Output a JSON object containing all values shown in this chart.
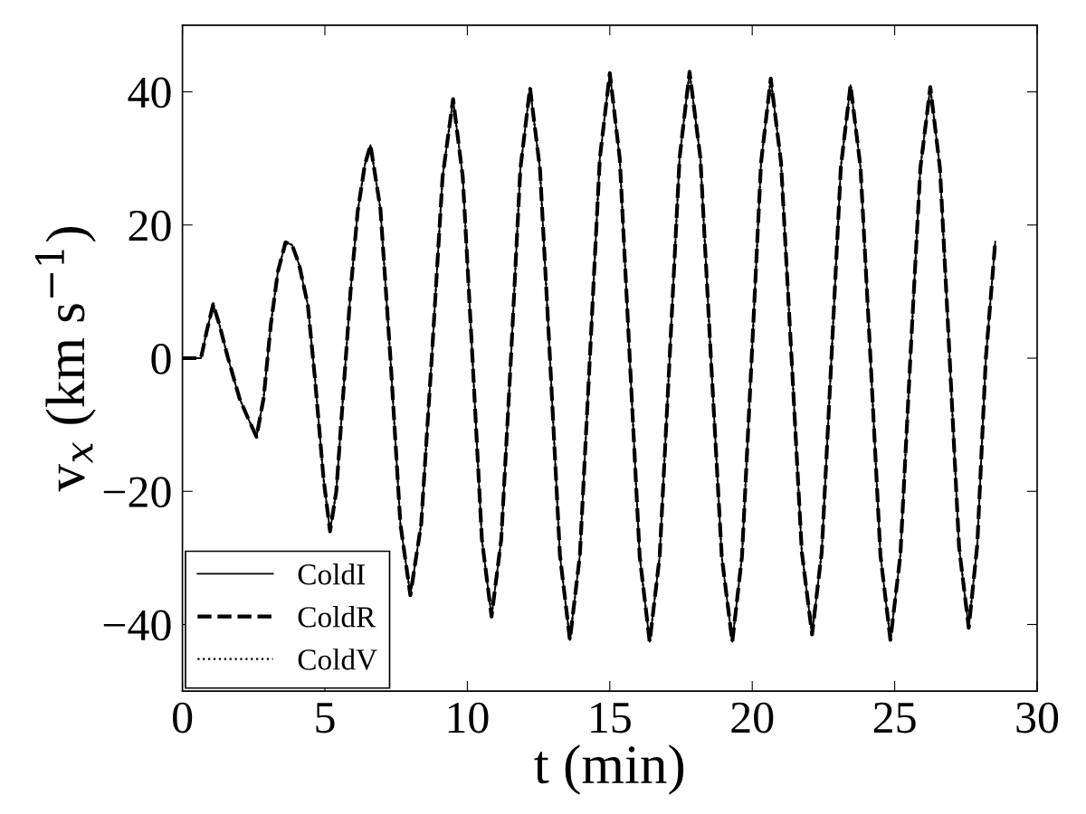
{
  "chart_data": {
    "type": "line",
    "xlabel": "t (min)",
    "ylabel": "v$_{x}$ (km s$^{−1}$)",
    "xlim": [
      0,
      30
    ],
    "xticks": [
      0,
      5,
      10,
      15,
      20,
      25,
      30
    ],
    "ylim": [
      -50,
      50
    ],
    "yticks": [
      {
        "value": -40,
        "label": "−40"
      },
      {
        "value": -20,
        "label": "−20"
      },
      0,
      20,
      40
    ],
    "x": [
      0,
      0.65,
      0.85,
      1.08,
      1.3,
      1.6,
      2.0,
      2.3,
      2.6,
      2.85,
      3.1,
      3.35,
      3.62,
      3.85,
      4.1,
      4.4,
      4.65,
      4.95,
      5.18,
      5.4,
      5.65,
      5.9,
      6.15,
      6.4,
      6.6,
      6.95,
      7.3,
      7.65,
      8.0,
      8.38,
      8.75,
      9.13,
      9.5,
      9.84,
      10.18,
      10.51,
      10.85,
      11.19,
      11.53,
      11.86,
      12.2,
      12.55,
      12.9,
      13.25,
      13.6,
      13.95,
      14.3,
      14.65,
      15.0,
      15.35,
      15.7,
      16.05,
      16.4,
      16.75,
      17.1,
      17.45,
      17.8,
      18.18,
      18.55,
      18.93,
      19.3,
      19.64,
      19.98,
      20.31,
      20.65,
      21.01,
      21.38,
      21.74,
      22.1,
      22.44,
      22.78,
      23.11,
      23.45,
      23.8,
      24.15,
      24.5,
      24.85,
      25.2,
      25.55,
      25.9,
      26.25,
      26.59,
      26.93,
      27.26,
      27.6,
      27.9,
      28.2,
      28.53
    ],
    "series": [
      {
        "name": "ColdI",
        "color": "#000000",
        "line_style": "solid",
        "values": [
          0,
          0,
          4,
          8.1,
          5,
          0,
          -6,
          -9,
          -11.8,
          -6,
          5,
          13,
          17.4,
          17,
          14,
          8,
          -3,
          -18,
          -26,
          -20,
          -5,
          10,
          22,
          29,
          32,
          22.4,
          0,
          -24.9,
          -35.6,
          -24.9,
          0,
          27.2,
          38.9,
          27.2,
          0,
          -27.2,
          -38.8,
          -27.2,
          0,
          28.4,
          40.6,
          28.4,
          0,
          -29.6,
          -42.3,
          -29.6,
          0,
          30.0,
          42.8,
          30.0,
          0,
          -29.8,
          -42.6,
          -29.8,
          0,
          30.1,
          43,
          30.1,
          0,
          -29.8,
          -42.6,
          -29.8,
          0,
          29.4,
          42,
          29.4,
          0,
          -29.1,
          -41.5,
          -29.1,
          0,
          28.7,
          41,
          28.7,
          0,
          -29.6,
          -42.3,
          -29.6,
          0,
          28.5,
          40.7,
          28.5,
          0,
          -28.4,
          -40.5,
          -28,
          0,
          17.5
        ]
      },
      {
        "name": "ColdR",
        "color": "#000000",
        "line_style": "dashed",
        "values": [
          0,
          0,
          4,
          8.1,
          5,
          0,
          -6,
          -9,
          -11.8,
          -6,
          5,
          13,
          17.4,
          17,
          14,
          8,
          -3,
          -18,
          -26,
          -20,
          -5,
          10,
          22,
          29,
          32,
          22.4,
          0,
          -24.9,
          -35.6,
          -24.9,
          0,
          27.2,
          38.9,
          27.2,
          0,
          -27.2,
          -38.8,
          -27.2,
          0,
          28.4,
          40.6,
          28.4,
          0,
          -29.6,
          -42.3,
          -29.6,
          0,
          30.0,
          42.8,
          30.0,
          0,
          -29.8,
          -42.6,
          -29.8,
          0,
          30.1,
          43,
          30.1,
          0,
          -29.8,
          -42.6,
          -29.8,
          0,
          29.4,
          42,
          29.4,
          0,
          -29.1,
          -41.5,
          -29.1,
          0,
          28.7,
          41,
          28.7,
          0,
          -29.6,
          -42.3,
          -29.6,
          0,
          28.5,
          40.7,
          28.5,
          0,
          -28.4,
          -40.5,
          -28,
          0,
          17.5
        ]
      },
      {
        "name": "ColdV",
        "color": "#000000",
        "line_style": "dotted",
        "values": [
          0,
          0,
          4,
          8.1,
          5,
          0,
          -6,
          -9,
          -11.8,
          -6,
          5,
          13,
          17.4,
          17,
          14,
          8,
          -3,
          -18,
          -26,
          -20,
          -5,
          10,
          22,
          29,
          32,
          22.4,
          0,
          -24.9,
          -35.6,
          -24.9,
          0,
          27.2,
          38.9,
          27.2,
          0,
          -27.2,
          -38.8,
          -27.2,
          0,
          28.4,
          40.6,
          28.4,
          0,
          -29.6,
          -42.3,
          -29.6,
          0,
          30.0,
          42.8,
          30.0,
          0,
          -29.8,
          -42.6,
          -29.8,
          0,
          30.1,
          43,
          30.1,
          0,
          -29.8,
          -42.6,
          -29.8,
          0,
          29.4,
          42,
          29.4,
          0,
          -29.1,
          -41.5,
          -29.1,
          0,
          28.7,
          41,
          28.7,
          0,
          -29.6,
          -42.3,
          -29.6,
          0,
          28.5,
          40.7,
          28.5,
          0,
          -28.4,
          -40.5,
          -28,
          0,
          17.5
        ]
      }
    ],
    "legend": "bottom left",
    "grid": false
  }
}
